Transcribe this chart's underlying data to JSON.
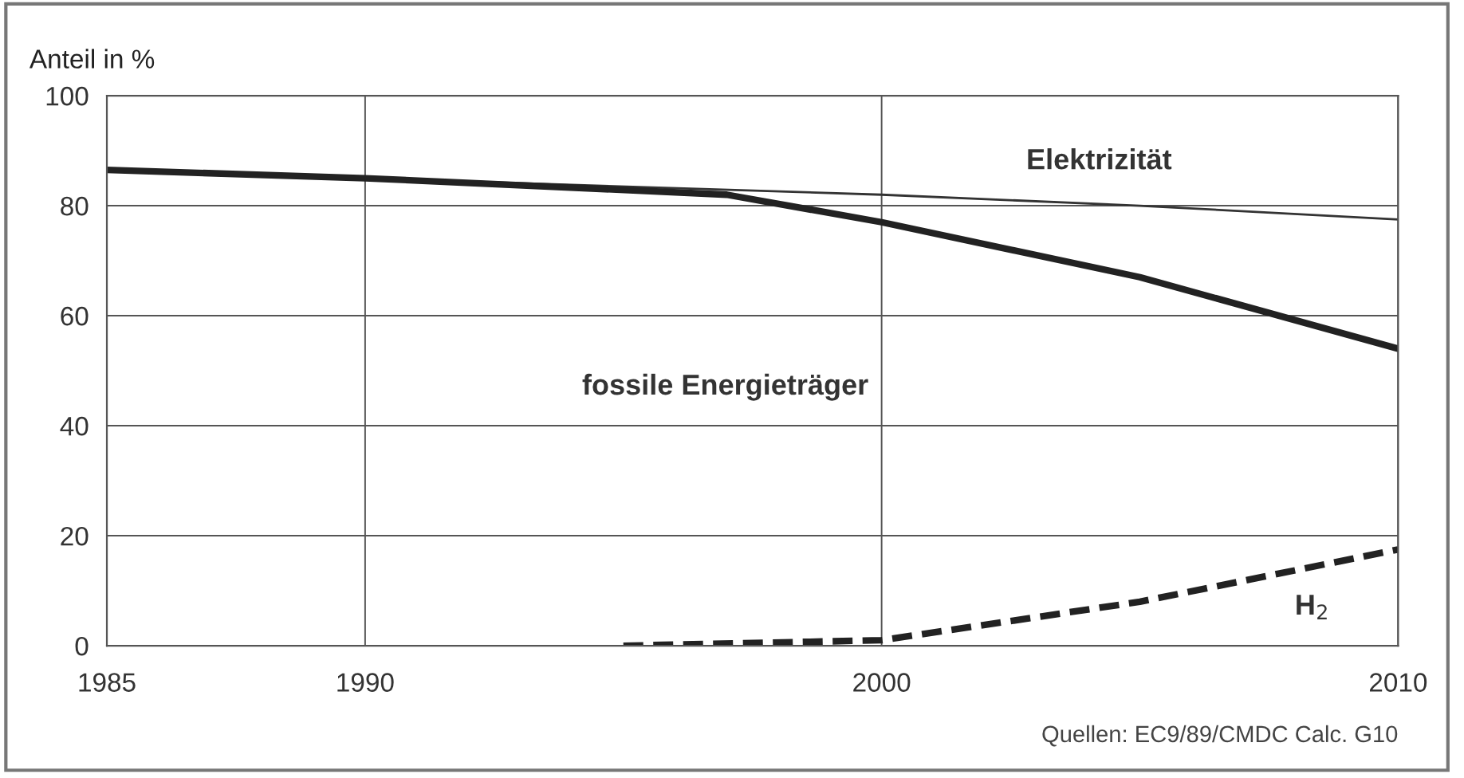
{
  "chart_data": {
    "type": "line",
    "ylabel": "Anteil in %",
    "xlim": [
      1985,
      2010
    ],
    "xticks": [
      1985,
      1990,
      2000,
      2010
    ],
    "ylim": [
      0,
      100
    ],
    "yticks": [
      0,
      20,
      40,
      60,
      80,
      100
    ],
    "grid": true,
    "series": [
      {
        "color": "#333333",
        "x": [
          1985,
          1990,
          2000,
          2005,
          2010
        ],
        "values": [
          86.5,
          85,
          82,
          80,
          77.5
        ],
        "line_style": "solid"
      },
      {
        "color": "#222222",
        "x": [
          1985,
          1990,
          1997,
          2000,
          2005,
          2010
        ],
        "values": [
          86.5,
          85,
          82,
          77,
          67,
          54
        ],
        "line_style": "solid"
      },
      {
        "color": "#222222",
        "x": [
          1995,
          2000,
          2005,
          2010
        ],
        "values": [
          0,
          1,
          8,
          17.5
        ],
        "line_style": "dashed"
      }
    ],
    "annotations": [
      "Elektrizität",
      "fossile Energieträger",
      "H$_{2}$",
      "Quellen: EC9/89/CMDC Calc. G10"
    ]
  }
}
